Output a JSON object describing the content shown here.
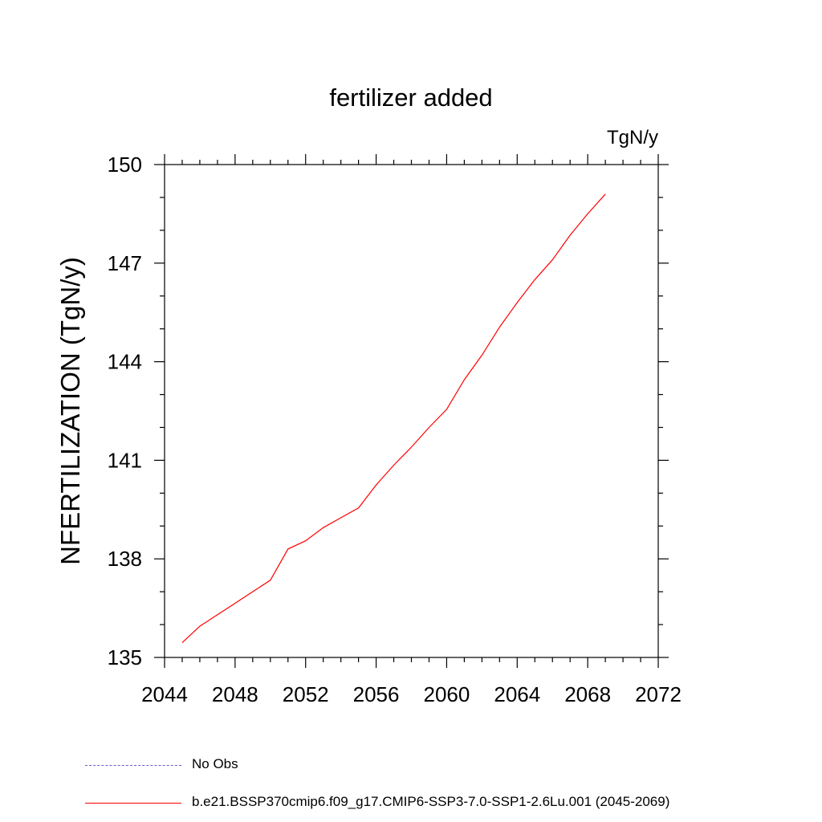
{
  "chart_data": {
    "type": "line",
    "title": "fertilizer added",
    "units": "TgN/y",
    "xlabel": "",
    "ylabel": "NFERTILIZATION  (TgN/y)",
    "xlim": [
      2044,
      2072
    ],
    "ylim": [
      135,
      150
    ],
    "xticks": [
      2044,
      2048,
      2052,
      2056,
      2060,
      2064,
      2068,
      2072
    ],
    "yticks": [
      135,
      138,
      141,
      144,
      147,
      150
    ],
    "series": [
      {
        "name": "b.e21.BSSP370cmip6.f09_g17.CMIP6-SSP3-7.0-SSP1-2.6Lu.001 (2045-2069)",
        "color": "#ff0000",
        "x": [
          2045,
          2046,
          2047,
          2048,
          2049,
          2050,
          2051,
          2052,
          2053,
          2054,
          2055,
          2056,
          2057,
          2058,
          2059,
          2060,
          2061,
          2062,
          2063,
          2064,
          2065,
          2066,
          2067,
          2068,
          2069
        ],
        "y": [
          135.45,
          135.95,
          136.3,
          136.65,
          137.0,
          137.35,
          138.3,
          138.55,
          138.95,
          139.25,
          139.55,
          140.25,
          140.85,
          141.4,
          142.0,
          142.55,
          143.45,
          144.2,
          145.05,
          145.8,
          146.5,
          147.1,
          147.85,
          148.5,
          149.1
        ]
      }
    ]
  },
  "legend": {
    "items": [
      {
        "label": "No Obs",
        "color": "#6a5acd",
        "style": "dashed"
      },
      {
        "label": "b.e21.BSSP370cmip6.f09_g17.CMIP6-SSP3-7.0-SSP1-2.6Lu.001 (2045-2069)",
        "color": "#ff0000",
        "style": "solid"
      }
    ]
  }
}
